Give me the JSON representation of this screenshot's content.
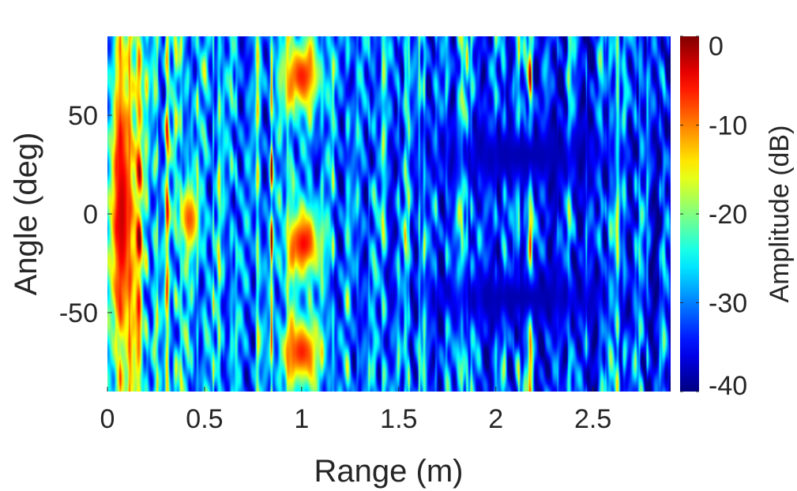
{
  "chart_data": {
    "type": "heatmap",
    "title": "",
    "xlabel": "Range (m)",
    "ylabel": "Angle (deg)",
    "xlim": [
      0,
      2.9
    ],
    "ylim": [
      -90,
      90
    ],
    "xticks": [
      0,
      0.5,
      1,
      1.5,
      2,
      2.5
    ],
    "xtick_labels": [
      "0",
      "0.5",
      "1",
      "1.5",
      "2",
      "2.5"
    ],
    "yticks": [
      50,
      0,
      -50
    ],
    "ytick_labels": [
      "50",
      "0",
      "-50"
    ],
    "colormap": "jet",
    "colorbar": {
      "label": "Amplitude (dB)",
      "range": [
        -40,
        0
      ],
      "ticks": [
        0,
        -10,
        -20,
        -30,
        -40
      ],
      "tick_labels": [
        "0",
        "-10",
        "-20",
        "-30",
        "-40"
      ],
      "placement": "right"
    },
    "grid": false,
    "features": [
      {
        "range_m": [
          0.0,
          0.15
        ],
        "angle_deg": [
          -90,
          90
        ],
        "level_db": -3,
        "desc": "strong return near zero range across all angles"
      },
      {
        "range_m": [
          0.36,
          0.48
        ],
        "angle_deg": [
          -20,
          15
        ],
        "level_db": -8,
        "desc": "target near 0 deg"
      },
      {
        "range_m": [
          0.9,
          1.12
        ],
        "angle_deg": [
          -35,
          5
        ],
        "level_db": -5,
        "desc": "target near -10 deg"
      },
      {
        "range_m": [
          0.88,
          1.12
        ],
        "angle_deg": [
          50,
          90
        ],
        "level_db": -6,
        "desc": "return at high angles"
      },
      {
        "range_m": [
          0.88,
          1.12
        ],
        "angle_deg": [
          -90,
          -50
        ],
        "level_db": -6,
        "desc": "return at low angles"
      },
      {
        "range_m": [
          1.5,
          2.8
        ],
        "angle_deg": [
          10,
          50
        ],
        "level_db": -38,
        "desc": "low-amplitude region"
      },
      {
        "range_m": [
          1.45,
          2.8
        ],
        "angle_deg": [
          -60,
          -25
        ],
        "level_db": -38,
        "desc": "low-amplitude region"
      }
    ]
  }
}
